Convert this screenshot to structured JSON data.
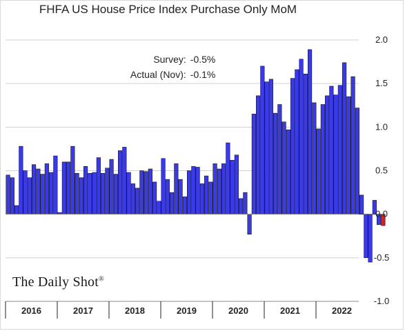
{
  "chart_data": {
    "type": "bar",
    "title": "FHFA US House Price Index Purchase Only MoM",
    "annotations": {
      "survey_label": "Survey:",
      "survey_value": "-0.5%",
      "actual_label": "Actual (Nov):",
      "actual_value": "-0.1%"
    },
    "source_logo": "The Daily Shot",
    "ylim": [
      -1.0,
      2.0
    ],
    "yticks": [
      "2.0",
      "1.5",
      "1.0",
      "0.5",
      "0.0",
      "-0.5",
      "-1.0"
    ],
    "ytick_values": [
      2.0,
      1.5,
      1.0,
      0.5,
      0.0,
      -0.5,
      -1.0
    ],
    "grid": true,
    "x_axis_position": "bottom",
    "y_axis_position": "right",
    "year_labels": [
      "2016",
      "2017",
      "2018",
      "2019",
      "2020",
      "2021",
      "2022"
    ],
    "start": "2016-01",
    "colors": {
      "bar": "#3a3ae6",
      "latest_bar": "#e01b1b",
      "grid": "#d0d0d0"
    },
    "series": [
      {
        "values": [
          0.45,
          0.42,
          0.1,
          0.78,
          0.5,
          0.42,
          0.57,
          0.52,
          0.46,
          0.58,
          0.48,
          0.67,
          0.02,
          0.6,
          0.6,
          0.78,
          0.47,
          0.42,
          0.55,
          0.47,
          0.48,
          0.65,
          0.47,
          0.53,
          0.63,
          0.46,
          0.73,
          0.77,
          0.48,
          0.35,
          0.3,
          0.5,
          0.49,
          0.52,
          0.37,
          0.15,
          0.64,
          0.4,
          0.25,
          0.58,
          0.4,
          0.2,
          0.5,
          0.55,
          0.54,
          0.35,
          0.44,
          0.37,
          0.58,
          0.52,
          0.58,
          0.82,
          0.62,
          0.68,
          0.18,
          0.25,
          -0.23,
          1.15,
          1.36,
          1.7,
          1.52,
          1.55,
          1.16,
          1.26,
          1.06,
          0.97,
          1.56,
          1.66,
          1.78,
          1.61,
          1.89,
          1.28,
          0.98,
          1.26,
          1.36,
          1.47,
          1.37,
          1.48,
          1.74,
          1.35,
          1.58,
          1.22,
          0.22,
          -0.5,
          -0.55,
          0.16,
          -0.12,
          -0.13
        ]
      }
    ]
  }
}
